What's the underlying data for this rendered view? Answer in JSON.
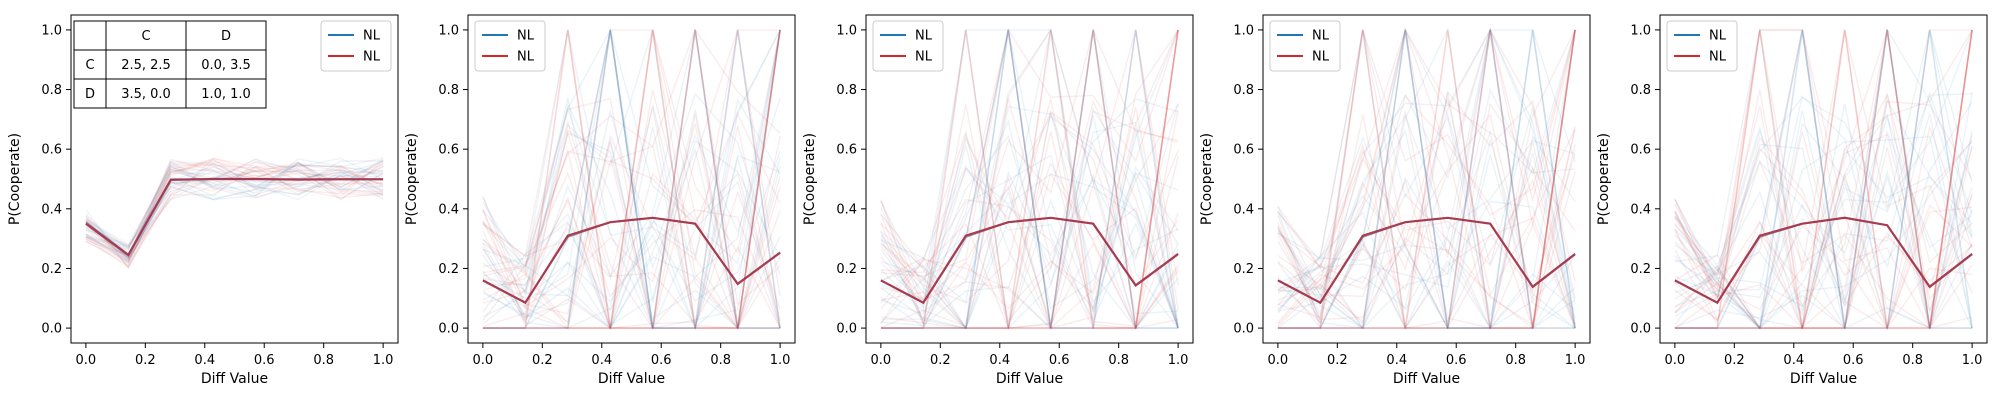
{
  "colors": {
    "blue": "#1f77b4",
    "red": "#d62728",
    "mean": "#a8354a"
  },
  "table": {
    "header": [
      "",
      "C",
      "D"
    ],
    "rows": [
      [
        "C",
        "2.5, 2.5",
        "0.0, 3.5"
      ],
      [
        "D",
        "3.5, 0.0",
        "1.0, 1.0"
      ]
    ]
  },
  "chart_data": [
    {
      "type": "line",
      "xlabel": "Diff Value",
      "ylabel": "P(Cooperate)",
      "xlim": [
        -0.05,
        1.05
      ],
      "ylim": [
        -0.05,
        1.05
      ],
      "xticks": [
        "0.0",
        "0.2",
        "0.4",
        "0.6",
        "0.8",
        "1.0"
      ],
      "yticks": [
        "0.0",
        "0.2",
        "0.4",
        "0.6",
        "0.8",
        "1.0"
      ],
      "legend": {
        "placement": "top-right",
        "entries": [
          {
            "label": "NL",
            "color": "#1f77b4"
          },
          {
            "label": "NL",
            "color": "#d62728"
          }
        ]
      },
      "x": [
        0.0,
        0.1429,
        0.2857,
        0.4286,
        0.5714,
        0.7143,
        0.8571,
        1.0
      ],
      "series": [
        {
          "values": [
            0.355,
            0.247,
            0.5,
            0.5,
            0.5,
            0.5,
            0.5,
            0.5
          ]
        },
        {
          "values": [
            0.35,
            0.245,
            0.497,
            0.5,
            0.5,
            0.498,
            0.499,
            0.499
          ]
        }
      ],
      "has_table": true
    },
    {
      "type": "line",
      "xlabel": "Diff Value",
      "ylabel": "P(Cooperate)",
      "xlim": [
        -0.05,
        1.05
      ],
      "ylim": [
        -0.05,
        1.05
      ],
      "xticks": [
        "0.0",
        "0.2",
        "0.4",
        "0.6",
        "0.8",
        "1.0"
      ],
      "yticks": [
        "0.0",
        "0.2",
        "0.4",
        "0.6",
        "0.8",
        "1.0"
      ],
      "legend": {
        "placement": "top-left",
        "entries": [
          {
            "label": "NL",
            "color": "#1f77b4"
          },
          {
            "label": "NL",
            "color": "#d62728"
          }
        ]
      },
      "x": [
        0.0,
        0.1429,
        0.2857,
        0.4286,
        0.5714,
        0.7143,
        0.8571,
        1.0
      ],
      "series": [
        {
          "values": [
            0.16,
            0.085,
            0.305,
            0.355,
            0.37,
            0.35,
            0.15,
            0.255
          ]
        },
        {
          "values": [
            0.16,
            0.085,
            0.31,
            0.355,
            0.37,
            0.35,
            0.148,
            0.253
          ]
        }
      ]
    },
    {
      "type": "line",
      "xlabel": "Diff Value",
      "ylabel": "P(Cooperate)",
      "xlim": [
        -0.05,
        1.05
      ],
      "ylim": [
        -0.05,
        1.05
      ],
      "xticks": [
        "0.0",
        "0.2",
        "0.4",
        "0.6",
        "0.8",
        "1.0"
      ],
      "yticks": [
        "0.0",
        "0.2",
        "0.4",
        "0.6",
        "0.8",
        "1.0"
      ],
      "legend": {
        "placement": "top-left",
        "entries": [
          {
            "label": "NL",
            "color": "#1f77b4"
          },
          {
            "label": "NL",
            "color": "#d62728"
          }
        ]
      },
      "x": [
        0.0,
        0.1429,
        0.2857,
        0.4286,
        0.5714,
        0.7143,
        0.8571,
        1.0
      ],
      "series": [
        {
          "values": [
            0.16,
            0.085,
            0.305,
            0.355,
            0.37,
            0.35,
            0.145,
            0.25
          ]
        },
        {
          "values": [
            0.16,
            0.085,
            0.31,
            0.355,
            0.37,
            0.35,
            0.143,
            0.248
          ]
        }
      ]
    },
    {
      "type": "line",
      "xlabel": "Diff Value",
      "ylabel": "P(Cooperate)",
      "xlim": [
        -0.05,
        1.05
      ],
      "ylim": [
        -0.05,
        1.05
      ],
      "xticks": [
        "0.0",
        "0.2",
        "0.4",
        "0.6",
        "0.8",
        "1.0"
      ],
      "yticks": [
        "0.0",
        "0.2",
        "0.4",
        "0.6",
        "0.8",
        "1.0"
      ],
      "legend": {
        "placement": "top-left",
        "entries": [
          {
            "label": "NL",
            "color": "#1f77b4"
          },
          {
            "label": "NL",
            "color": "#d62728"
          }
        ]
      },
      "x": [
        0.0,
        0.1429,
        0.2857,
        0.4286,
        0.5714,
        0.7143,
        0.8571,
        1.0
      ],
      "series": [
        {
          "values": [
            0.16,
            0.085,
            0.305,
            0.355,
            0.37,
            0.35,
            0.14,
            0.25
          ]
        },
        {
          "values": [
            0.16,
            0.085,
            0.31,
            0.355,
            0.37,
            0.35,
            0.138,
            0.248
          ]
        }
      ]
    },
    {
      "type": "line",
      "xlabel": "Diff Value",
      "ylabel": "P(Cooperate)",
      "xlim": [
        -0.05,
        1.05
      ],
      "ylim": [
        -0.05,
        1.05
      ],
      "xticks": [
        "0.0",
        "0.2",
        "0.4",
        "0.6",
        "0.8",
        "1.0"
      ],
      "yticks": [
        "0.0",
        "0.2",
        "0.4",
        "0.6",
        "0.8",
        "1.0"
      ],
      "legend": {
        "placement": "top-left",
        "entries": [
          {
            "label": "NL",
            "color": "#1f77b4"
          },
          {
            "label": "NL",
            "color": "#d62728"
          }
        ]
      },
      "x": [
        0.0,
        0.1429,
        0.2857,
        0.4286,
        0.5714,
        0.7143,
        0.8571,
        1.0
      ],
      "series": [
        {
          "values": [
            0.16,
            0.085,
            0.305,
            0.35,
            0.37,
            0.345,
            0.14,
            0.25
          ]
        },
        {
          "values": [
            0.16,
            0.085,
            0.31,
            0.35,
            0.37,
            0.345,
            0.138,
            0.248
          ]
        }
      ]
    }
  ]
}
